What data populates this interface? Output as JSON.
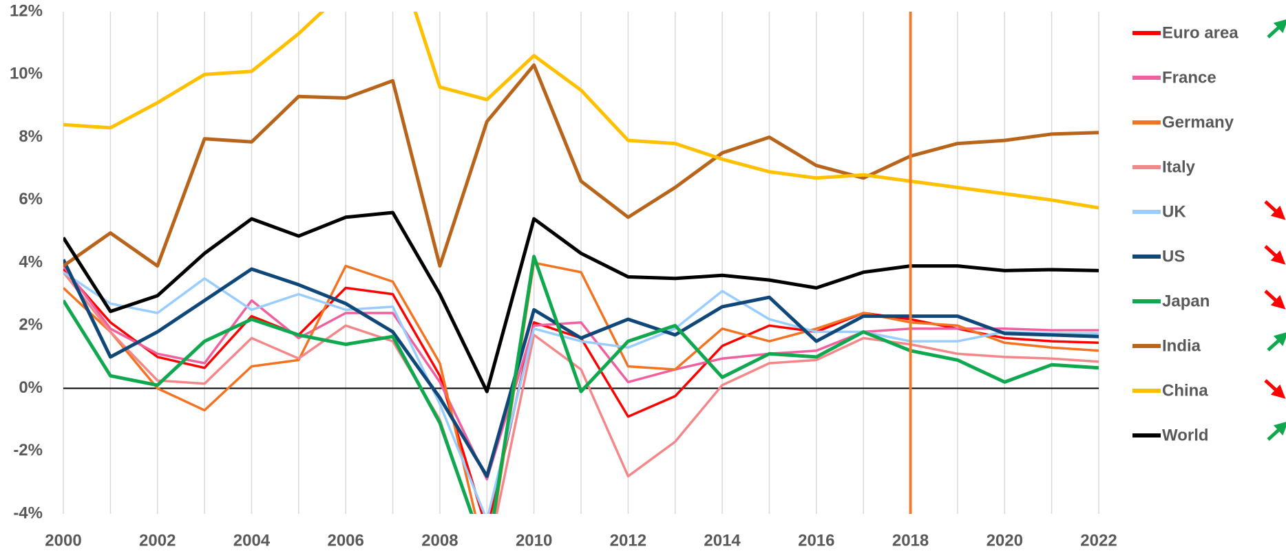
{
  "chart_data": {
    "type": "line",
    "x": [
      2000,
      2001,
      2002,
      2003,
      2004,
      2005,
      2006,
      2007,
      2008,
      2009,
      2010,
      2011,
      2012,
      2013,
      2014,
      2015,
      2016,
      2017,
      2018,
      2019,
      2020,
      2021,
      2022
    ],
    "xlim": [
      2000,
      2022
    ],
    "xticks": [
      2000,
      2002,
      2004,
      2006,
      2008,
      2010,
      2012,
      2014,
      2016,
      2018,
      2020,
      2022
    ],
    "xgrid": [
      2000,
      2001,
      2002,
      2003,
      2004,
      2005,
      2006,
      2007,
      2008,
      2009,
      2010,
      2011,
      2012,
      2013,
      2014,
      2015,
      2016,
      2017,
      2018,
      2019,
      2020,
      2021,
      2022
    ],
    "ylim": [
      -4,
      12
    ],
    "yticks": [
      {
        "value": -4,
        "label": "-4%"
      },
      {
        "value": -2,
        "label": "-2%"
      },
      {
        "value": 0,
        "label": "0%"
      },
      {
        "value": 2,
        "label": "2%"
      },
      {
        "value": 4,
        "label": "4%"
      },
      {
        "value": 6,
        "label": "6%"
      },
      {
        "value": 8,
        "label": "8%"
      },
      {
        "value": 10,
        "label": "10%"
      },
      {
        "value": 12,
        "label": "12%"
      }
    ],
    "vertical_line": {
      "x": 2018,
      "color": "#ed7d31"
    },
    "series": [
      {
        "name": "Euro area",
        "color": "#ff0000",
        "values": [
          3.8,
          2.1,
          1.0,
          0.65,
          2.3,
          1.7,
          3.2,
          3.0,
          0.4,
          -4.5,
          2.1,
          1.6,
          -0.9,
          -0.25,
          1.35,
          2.0,
          1.8,
          2.4,
          2.2,
          1.9,
          1.6,
          1.5,
          1.45
        ]
      },
      {
        "name": "France",
        "color": "#f0609e",
        "values": [
          3.9,
          1.9,
          1.1,
          0.8,
          2.8,
          1.6,
          2.4,
          2.4,
          0.2,
          -2.9,
          2.0,
          2.1,
          0.2,
          0.6,
          0.95,
          1.1,
          1.2,
          1.8,
          1.9,
          1.9,
          1.9,
          1.85,
          1.85
        ]
      },
      {
        "name": "Germany",
        "color": "#f47320",
        "values": [
          3.2,
          1.8,
          0.0,
          -0.7,
          0.7,
          0.9,
          3.9,
          3.4,
          0.8,
          -5.6,
          4.0,
          3.7,
          0.7,
          0.6,
          1.9,
          1.5,
          1.9,
          2.4,
          2.1,
          2.0,
          1.45,
          1.3,
          1.2
        ]
      },
      {
        "name": "Italy",
        "color": "#f4878a",
        "values": [
          3.7,
          1.8,
          0.25,
          0.15,
          1.6,
          0.95,
          2.0,
          1.5,
          -1.0,
          -5.5,
          1.7,
          0.6,
          -2.8,
          -1.7,
          0.1,
          0.8,
          0.9,
          1.6,
          1.4,
          1.1,
          1.0,
          0.95,
          0.85
        ]
      },
      {
        "name": "UK",
        "color": "#99ccff",
        "values": [
          3.7,
          2.7,
          2.4,
          3.5,
          2.5,
          3.0,
          2.5,
          2.6,
          -0.5,
          -4.2,
          1.9,
          1.5,
          1.3,
          1.9,
          3.1,
          2.2,
          1.8,
          1.8,
          1.5,
          1.5,
          1.8,
          1.75,
          1.75
        ]
      },
      {
        "name": "US",
        "color": "#0e4778",
        "values": [
          4.1,
          1.0,
          1.8,
          2.8,
          3.8,
          3.3,
          2.7,
          1.8,
          -0.3,
          -2.8,
          2.5,
          1.6,
          2.2,
          1.7,
          2.6,
          2.9,
          1.5,
          2.3,
          2.3,
          2.3,
          1.75,
          1.7,
          1.65
        ]
      },
      {
        "name": "Japan",
        "color": "#10a84f",
        "values": [
          2.8,
          0.4,
          0.1,
          1.5,
          2.2,
          1.7,
          1.4,
          1.65,
          -1.1,
          -5.4,
          4.2,
          -0.1,
          1.5,
          2.0,
          0.35,
          1.1,
          1.0,
          1.8,
          1.2,
          0.9,
          0.2,
          0.75,
          0.65
        ]
      },
      {
        "name": "India",
        "color": "#b8651b",
        "values": [
          3.9,
          4.95,
          3.9,
          7.95,
          7.85,
          9.3,
          9.25,
          9.8,
          3.9,
          8.5,
          10.3,
          6.6,
          5.45,
          6.4,
          7.5,
          8.0,
          7.1,
          6.7,
          7.4,
          7.8,
          7.9,
          8.1,
          8.15
        ]
      },
      {
        "name": "China",
        "color": "#ffc000",
        "values": [
          8.4,
          8.3,
          9.1,
          10.0,
          10.1,
          11.3,
          12.7,
          14.2,
          9.6,
          9.2,
          10.6,
          9.5,
          7.9,
          7.8,
          7.3,
          6.9,
          6.7,
          6.8,
          6.6,
          6.4,
          6.2,
          6.0,
          5.75
        ]
      },
      {
        "name": "World",
        "color": "#000000",
        "values": [
          4.8,
          2.45,
          2.95,
          4.3,
          5.4,
          4.85,
          5.45,
          5.6,
          3.0,
          -0.1,
          5.4,
          4.3,
          3.55,
          3.5,
          3.6,
          3.45,
          3.2,
          3.7,
          3.9,
          3.9,
          3.75,
          3.78,
          3.75
        ]
      }
    ]
  }
}
